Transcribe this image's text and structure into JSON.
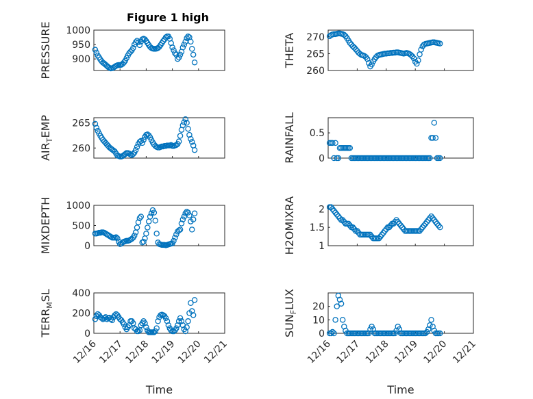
{
  "figure": {
    "title": "Figure 1 high"
  },
  "x_tick_labels": [
    "12/16",
    "12/17",
    "12/18",
    "12/19",
    "12/20",
    "12/21"
  ],
  "colors": {
    "marker": "#0072BD",
    "axes": "#262626",
    "grid": "#d9d9d9"
  },
  "chart_data": [
    {
      "type": "scatter",
      "title": "Figure 1 high",
      "ylabel": "PRESSURE",
      "xlabel": "",
      "xlim": [
        0,
        5
      ],
      "ylim": [
        860,
        1000
      ],
      "yticks": [
        900,
        950,
        1000
      ],
      "grid": true,
      "x": [
        0.05,
        0.1,
        0.15,
        0.2,
        0.25,
        0.3,
        0.35,
        0.4,
        0.45,
        0.5,
        0.55,
        0.6,
        0.65,
        0.7,
        0.75,
        0.8,
        0.85,
        0.9,
        0.95,
        1.0,
        1.05,
        1.1,
        1.15,
        1.2,
        1.25,
        1.3,
        1.35,
        1.4,
        1.45,
        1.5,
        1.55,
        1.6,
        1.65,
        1.7,
        1.75,
        1.8,
        1.85,
        1.9,
        1.95,
        2.0,
        2.05,
        2.1,
        2.15,
        2.2,
        2.25,
        2.3,
        2.35,
        2.4,
        2.45,
        2.5,
        2.55,
        2.6,
        2.65,
        2.7,
        2.75,
        2.8,
        2.85,
        2.9,
        2.95,
        3.0,
        3.05,
        3.1,
        3.15,
        3.2,
        3.25,
        3.3,
        3.35,
        3.4,
        3.45,
        3.5,
        3.55,
        3.6,
        3.65,
        3.7,
        3.75,
        3.8,
        3.85
      ],
      "y": [
        932,
        922,
        912,
        905,
        898,
        892,
        887,
        884,
        880,
        876,
        872,
        869,
        867,
        868,
        870,
        873,
        876,
        878,
        879,
        879,
        880,
        883,
        888,
        894,
        903,
        912,
        920,
        925,
        930,
        938,
        950,
        958,
        963,
        958,
        948,
        960,
        968,
        970,
        968,
        962,
        955,
        948,
        942,
        938,
        936,
        935,
        935,
        936,
        938,
        942,
        948,
        955,
        962,
        968,
        975,
        978,
        978,
        970,
        955,
        940,
        930,
        920,
        915,
        900,
        905,
        915,
        925,
        940,
        950,
        960,
        972,
        978,
        975,
        960,
        935,
        915,
        888
      ]
    },
    {
      "type": "scatter",
      "title": "",
      "ylabel": "THETA",
      "xlabel": "",
      "xlim": [
        0,
        5
      ],
      "ylim": [
        260,
        272
      ],
      "yticks": [
        260,
        265,
        270
      ],
      "grid": true,
      "x": [
        0.05,
        0.1,
        0.15,
        0.2,
        0.25,
        0.3,
        0.35,
        0.4,
        0.45,
        0.5,
        0.55,
        0.6,
        0.65,
        0.7,
        0.75,
        0.8,
        0.85,
        0.9,
        0.95,
        1.0,
        1.05,
        1.1,
        1.15,
        1.2,
        1.25,
        1.3,
        1.35,
        1.4,
        1.45,
        1.5,
        1.55,
        1.6,
        1.65,
        1.7,
        1.75,
        1.8,
        1.85,
        1.9,
        1.95,
        2.0,
        2.05,
        2.1,
        2.15,
        2.2,
        2.25,
        2.3,
        2.35,
        2.4,
        2.45,
        2.5,
        2.55,
        2.6,
        2.65,
        2.7,
        2.75,
        2.8,
        2.85,
        2.9,
        2.95,
        3.0,
        3.05,
        3.1,
        3.15,
        3.2,
        3.25,
        3.3,
        3.35,
        3.4,
        3.45,
        3.5,
        3.55,
        3.6,
        3.65,
        3.7,
        3.75,
        3.8,
        3.85
      ],
      "y": [
        270.2,
        270.5,
        270.7,
        270.8,
        270.8,
        270.9,
        271.0,
        271.0,
        270.9,
        270.8,
        270.6,
        270.2,
        269.6,
        268.9,
        268.2,
        267.7,
        267.2,
        266.8,
        266.3,
        265.8,
        265.3,
        264.9,
        264.6,
        264.5,
        264.3,
        264.0,
        263.4,
        262.2,
        261.2,
        261.8,
        262.7,
        263.4,
        264.0,
        264.4,
        264.6,
        264.7,
        264.8,
        264.9,
        265.0,
        265.0,
        265.1,
        265.1,
        265.2,
        265.2,
        265.3,
        265.3,
        265.4,
        265.4,
        265.3,
        265.2,
        265.1,
        265.0,
        265.1,
        265.2,
        265.1,
        264.9,
        264.6,
        264.2,
        263.6,
        262.6,
        262.0,
        263.0,
        264.8,
        266.2,
        267.2,
        267.7,
        267.9,
        268.0,
        268.1,
        268.2,
        268.3,
        268.4,
        268.4,
        268.3,
        268.2,
        268.1,
        268.0
      ]
    },
    {
      "type": "scatter",
      "title": "",
      "ylabel": "AIR_TEMP",
      "xlabel": "",
      "xlim": [
        0,
        5
      ],
      "ylim": [
        258,
        266
      ],
      "yticks": [
        260,
        265
      ],
      "grid": true,
      "x": [
        0.05,
        0.1,
        0.15,
        0.2,
        0.25,
        0.3,
        0.35,
        0.4,
        0.45,
        0.5,
        0.55,
        0.6,
        0.65,
        0.7,
        0.75,
        0.8,
        0.85,
        0.9,
        0.95,
        1.0,
        1.05,
        1.1,
        1.15,
        1.2,
        1.25,
        1.3,
        1.35,
        1.4,
        1.45,
        1.5,
        1.55,
        1.6,
        1.65,
        1.7,
        1.75,
        1.8,
        1.85,
        1.9,
        1.95,
        2.0,
        2.05,
        2.1,
        2.15,
        2.2,
        2.25,
        2.3,
        2.35,
        2.4,
        2.45,
        2.5,
        2.55,
        2.6,
        2.65,
        2.7,
        2.75,
        2.8,
        2.85,
        2.9,
        2.95,
        3.0,
        3.05,
        3.1,
        3.15,
        3.2,
        3.25,
        3.3,
        3.35,
        3.4,
        3.45,
        3.5,
        3.55,
        3.6,
        3.65,
        3.7,
        3.75,
        3.8,
        3.85
      ],
      "y": [
        264.8,
        264.0,
        263.4,
        262.9,
        262.4,
        262.0,
        261.6,
        261.3,
        261.0,
        260.7,
        260.4,
        260.1,
        259.9,
        259.7,
        259.5,
        259.3,
        258.9,
        258.5,
        258.4,
        258.3,
        258.3,
        258.4,
        258.6,
        258.8,
        259.0,
        259.0,
        258.9,
        258.7,
        258.6,
        258.8,
        259.1,
        259.6,
        260.2,
        260.8,
        261.2,
        261.4,
        261.0,
        261.6,
        262.2,
        262.6,
        262.7,
        262.5,
        262.1,
        261.6,
        261.1,
        260.7,
        260.4,
        260.2,
        260.1,
        260.1,
        260.2,
        260.3,
        260.3,
        260.4,
        260.4,
        260.5,
        260.5,
        260.5,
        260.6,
        260.4,
        260.4,
        260.5,
        260.6,
        260.8,
        261.3,
        262.4,
        263.6,
        264.5,
        265.1,
        265.7,
        265.0,
        263.8,
        262.6,
        261.8,
        261.2,
        260.5,
        259.6
      ]
    },
    {
      "type": "scatter",
      "title": "",
      "ylabel": "RAINFALL",
      "xlabel": "",
      "xlim": [
        0,
        5
      ],
      "ylim": [
        0,
        0.8
      ],
      "yticks": [
        0,
        0.5
      ],
      "grid": true,
      "x": [
        0.05,
        0.1,
        0.15,
        0.2,
        0.25,
        0.3,
        0.35,
        0.4,
        0.45,
        0.5,
        0.55,
        0.6,
        0.65,
        0.7,
        0.75,
        0.8,
        0.85,
        0.9,
        0.95,
        1.0,
        1.05,
        1.1,
        1.15,
        1.2,
        1.25,
        1.3,
        1.35,
        1.4,
        1.45,
        1.5,
        1.55,
        1.6,
        1.65,
        1.7,
        1.75,
        1.8,
        1.85,
        1.9,
        1.95,
        2.0,
        2.05,
        2.1,
        2.15,
        2.2,
        2.25,
        2.3,
        2.35,
        2.4,
        2.45,
        2.5,
        2.55,
        2.6,
        2.65,
        2.7,
        2.75,
        2.8,
        2.85,
        2.9,
        2.95,
        3.0,
        3.05,
        3.1,
        3.15,
        3.2,
        3.25,
        3.3,
        3.35,
        3.4,
        3.45,
        3.5,
        3.55,
        3.6,
        3.65,
        3.7,
        3.75,
        3.8,
        3.85
      ],
      "y": [
        0.3,
        0.3,
        0.3,
        0.0,
        0.3,
        0.0,
        0.0,
        0.2,
        0.2,
        0.2,
        0.2,
        0.2,
        0.2,
        0.2,
        0.2,
        0.0,
        0.0,
        0.0,
        0.0,
        0.0,
        0.0,
        0.0,
        0.0,
        0.0,
        0.0,
        0.0,
        0.0,
        0.0,
        0.0,
        0.0,
        0.0,
        0.0,
        0.0,
        0.0,
        0.0,
        0.0,
        0.0,
        0.0,
        0.0,
        0.0,
        0.0,
        0.0,
        0.0,
        0.0,
        0.0,
        0.0,
        0.0,
        0.0,
        0.0,
        0.0,
        0.0,
        0.0,
        0.0,
        0.0,
        0.0,
        0.0,
        0.0,
        0.0,
        0.0,
        0.0,
        0.0,
        0.0,
        0.0,
        0.0,
        0.0,
        0.0,
        0.0,
        0.0,
        0.0,
        0.0,
        0.4,
        0.4,
        0.7,
        0.4,
        0.0,
        0.0,
        0.0
      ]
    },
    {
      "type": "scatter",
      "title": "",
      "ylabel": "MIXDEPTH",
      "xlabel": "",
      "xlim": [
        0,
        5
      ],
      "ylim": [
        0,
        1000
      ],
      "yticks": [
        0,
        500,
        1000
      ],
      "grid": true,
      "x": [
        0.05,
        0.1,
        0.15,
        0.2,
        0.25,
        0.3,
        0.35,
        0.4,
        0.45,
        0.5,
        0.55,
        0.6,
        0.65,
        0.7,
        0.75,
        0.8,
        0.85,
        0.9,
        0.95,
        1.0,
        1.05,
        1.1,
        1.15,
        1.2,
        1.25,
        1.3,
        1.35,
        1.4,
        1.45,
        1.5,
        1.55,
        1.6,
        1.65,
        1.7,
        1.75,
        1.8,
        1.85,
        1.9,
        1.95,
        2.0,
        2.05,
        2.1,
        2.15,
        2.2,
        2.25,
        2.3,
        2.35,
        2.4,
        2.45,
        2.5,
        2.55,
        2.6,
        2.65,
        2.7,
        2.75,
        2.8,
        2.85,
        2.9,
        2.95,
        3.0,
        3.05,
        3.1,
        3.15,
        3.2,
        3.25,
        3.3,
        3.35,
        3.4,
        3.45,
        3.5,
        3.55,
        3.6,
        3.65,
        3.7,
        3.75,
        3.8,
        3.85
      ],
      "y": [
        300,
        300,
        310,
        320,
        320,
        330,
        330,
        320,
        300,
        280,
        260,
        240,
        220,
        200,
        200,
        200,
        210,
        180,
        100,
        40,
        50,
        80,
        100,
        110,
        120,
        120,
        130,
        150,
        170,
        200,
        250,
        330,
        450,
        580,
        680,
        720,
        80,
        100,
        180,
        300,
        450,
        600,
        720,
        800,
        880,
        820,
        620,
        300,
        80,
        40,
        30,
        20,
        20,
        20,
        10,
        20,
        30,
        40,
        50,
        60,
        120,
        200,
        280,
        350,
        380,
        400,
        550,
        650,
        720,
        800,
        840,
        820,
        750,
        600,
        400,
        650,
        800
      ]
    },
    {
      "type": "scatter",
      "title": "",
      "ylabel": "H2OMIXRA",
      "xlabel": "",
      "xlim": [
        0,
        5
      ],
      "ylim": [
        1,
        2.1
      ],
      "yticks": [
        1,
        1.5,
        2
      ],
      "grid": true,
      "x": [
        0.05,
        0.1,
        0.15,
        0.2,
        0.25,
        0.3,
        0.35,
        0.4,
        0.45,
        0.5,
        0.55,
        0.6,
        0.65,
        0.7,
        0.75,
        0.8,
        0.85,
        0.9,
        0.95,
        1.0,
        1.05,
        1.1,
        1.15,
        1.2,
        1.25,
        1.3,
        1.35,
        1.4,
        1.45,
        1.5,
        1.55,
        1.6,
        1.65,
        1.7,
        1.75,
        1.8,
        1.85,
        1.9,
        1.95,
        2.0,
        2.05,
        2.1,
        2.15,
        2.2,
        2.25,
        2.3,
        2.35,
        2.4,
        2.45,
        2.5,
        2.55,
        2.6,
        2.65,
        2.7,
        2.75,
        2.8,
        2.85,
        2.9,
        2.95,
        3.0,
        3.05,
        3.1,
        3.15,
        3.2,
        3.25,
        3.3,
        3.35,
        3.4,
        3.45,
        3.5,
        3.55,
        3.6,
        3.65,
        3.7,
        3.75,
        3.8,
        3.85
      ],
      "y": [
        2.05,
        2.05,
        2.0,
        1.95,
        1.9,
        1.85,
        1.8,
        1.75,
        1.7,
        1.7,
        1.65,
        1.6,
        1.6,
        1.6,
        1.55,
        1.5,
        1.5,
        1.45,
        1.4,
        1.4,
        1.35,
        1.3,
        1.3,
        1.3,
        1.3,
        1.3,
        1.3,
        1.3,
        1.3,
        1.25,
        1.2,
        1.2,
        1.2,
        1.2,
        1.2,
        1.25,
        1.3,
        1.35,
        1.4,
        1.45,
        1.5,
        1.5,
        1.55,
        1.6,
        1.6,
        1.65,
        1.7,
        1.65,
        1.6,
        1.55,
        1.5,
        1.45,
        1.4,
        1.4,
        1.4,
        1.4,
        1.4,
        1.4,
        1.4,
        1.4,
        1.4,
        1.4,
        1.4,
        1.45,
        1.5,
        1.55,
        1.6,
        1.65,
        1.7,
        1.75,
        1.8,
        1.75,
        1.7,
        1.65,
        1.6,
        1.55,
        1.5
      ]
    },
    {
      "type": "scatter",
      "title": "",
      "ylabel": "TERR_MSL",
      "xlabel": "Time",
      "xlim": [
        0,
        5
      ],
      "ylim": [
        0,
        400
      ],
      "yticks": [
        0,
        200,
        400
      ],
      "grid": true,
      "x": [
        0.05,
        0.1,
        0.15,
        0.2,
        0.25,
        0.3,
        0.35,
        0.4,
        0.45,
        0.5,
        0.55,
        0.6,
        0.65,
        0.7,
        0.75,
        0.8,
        0.85,
        0.9,
        0.95,
        1.0,
        1.05,
        1.1,
        1.15,
        1.2,
        1.25,
        1.3,
        1.35,
        1.4,
        1.45,
        1.5,
        1.55,
        1.6,
        1.65,
        1.7,
        1.75,
        1.8,
        1.85,
        1.9,
        1.95,
        2.0,
        2.05,
        2.1,
        2.15,
        2.2,
        2.25,
        2.3,
        2.35,
        2.4,
        2.45,
        2.5,
        2.55,
        2.6,
        2.65,
        2.7,
        2.75,
        2.8,
        2.85,
        2.9,
        2.95,
        3.0,
        3.05,
        3.1,
        3.15,
        3.2,
        3.25,
        3.3,
        3.35,
        3.4,
        3.45,
        3.5,
        3.55,
        3.6,
        3.65,
        3.7,
        3.75,
        3.8,
        3.85
      ],
      "y": [
        140,
        170,
        190,
        180,
        160,
        150,
        140,
        150,
        160,
        140,
        150,
        155,
        140,
        130,
        160,
        180,
        190,
        180,
        160,
        140,
        130,
        110,
        90,
        60,
        40,
        60,
        80,
        120,
        120,
        100,
        50,
        40,
        20,
        20,
        30,
        80,
        100,
        120,
        100,
        60,
        30,
        10,
        10,
        10,
        10,
        10,
        20,
        50,
        120,
        160,
        180,
        185,
        180,
        170,
        150,
        120,
        80,
        50,
        30,
        20,
        20,
        30,
        50,
        80,
        120,
        150,
        120,
        80,
        40,
        20,
        60,
        120,
        200,
        300,
        220,
        180,
        330
      ]
    },
    {
      "type": "scatter",
      "title": "",
      "ylabel": "SUN_FLUX",
      "xlabel": "Time",
      "xlim": [
        0,
        5
      ],
      "ylim": [
        0,
        30
      ],
      "yticks": [
        0,
        10,
        20
      ],
      "grid": true,
      "x": [
        0.05,
        0.1,
        0.15,
        0.2,
        0.25,
        0.3,
        0.35,
        0.4,
        0.45,
        0.5,
        0.55,
        0.6,
        0.65,
        0.7,
        0.75,
        0.8,
        0.85,
        0.9,
        0.95,
        1.0,
        1.05,
        1.1,
        1.15,
        1.2,
        1.25,
        1.3,
        1.35,
        1.4,
        1.45,
        1.5,
        1.55,
        1.6,
        1.65,
        1.7,
        1.75,
        1.8,
        1.85,
        1.9,
        1.95,
        2.0,
        2.05,
        2.1,
        2.15,
        2.2,
        2.25,
        2.3,
        2.35,
        2.4,
        2.45,
        2.5,
        2.55,
        2.6,
        2.65,
        2.7,
        2.75,
        2.8,
        2.85,
        2.9,
        2.95,
        3.0,
        3.05,
        3.1,
        3.15,
        3.2,
        3.25,
        3.3,
        3.35,
        3.4,
        3.45,
        3.5,
        3.55,
        3.6,
        3.65,
        3.7,
        3.75,
        3.8,
        3.85
      ],
      "y": [
        0,
        0,
        1,
        0,
        10,
        20,
        28,
        25,
        22,
        10,
        5,
        2,
        0,
        0,
        0,
        0,
        0,
        0,
        0,
        0,
        0,
        0,
        0,
        0,
        0,
        0,
        0,
        0,
        3,
        5,
        3,
        0,
        0,
        0,
        0,
        0,
        0,
        0,
        0,
        0,
        0,
        0,
        0,
        0,
        0,
        0,
        2,
        5,
        3,
        0,
        0,
        0,
        0,
        0,
        0,
        0,
        0,
        0,
        0,
        0,
        0,
        0,
        0,
        0,
        0,
        0,
        0,
        1,
        3,
        6,
        10,
        5,
        2,
        0,
        0,
        0,
        0
      ]
    }
  ]
}
